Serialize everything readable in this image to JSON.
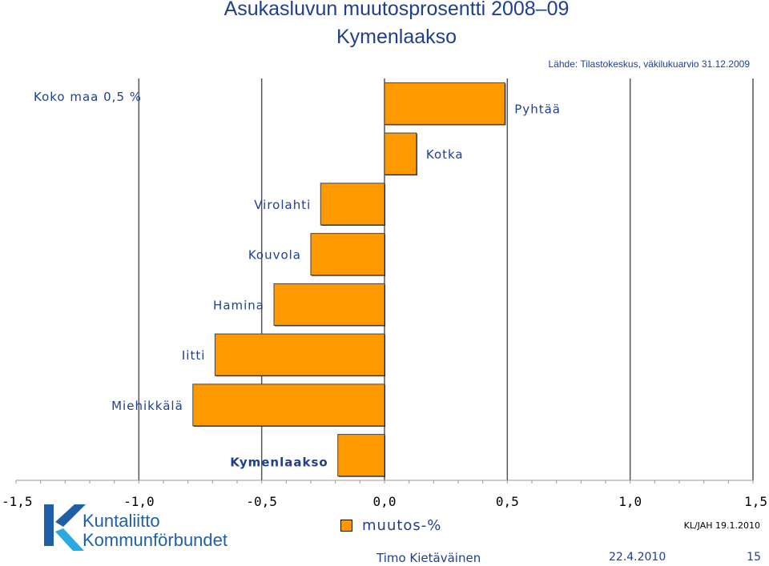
{
  "chart_data": {
    "type": "bar",
    "orientation": "horizontal",
    "title": "Asukasluvun muutosprosentti 2008–09",
    "subtitle": "Kymenlaakso",
    "source": "Lähde: Tilastokeskus, väkilukuarvio 31.12.2009",
    "reference_label": "Koko maa 0,5 %",
    "reference_value": 0.5,
    "categories": [
      "Pyhtää",
      "Kotka",
      "Virolahti",
      "Kouvola",
      "Hamina",
      "Iitti",
      "Miehikkälä",
      "Kymenlaakso"
    ],
    "values": [
      0.49,
      0.13,
      -0.26,
      -0.3,
      -0.45,
      -0.69,
      -0.78,
      -0.19
    ],
    "bold_categories": [
      "Kymenlaakso"
    ],
    "xlim": [
      -1.5,
      1.5
    ],
    "xticks": [
      -1.5,
      -1.0,
      -0.5,
      0.0,
      0.5,
      1.0,
      1.5
    ],
    "xtick_labels": [
      "-1,5",
      "-1,0",
      "-0,5",
      "0,0",
      "0,5",
      "1,0",
      "1,5"
    ],
    "grid": true,
    "legend": "bottom-center",
    "series_name": "muutos-%",
    "bar_color": "#ff9900",
    "label_color": "#1f3f8f"
  },
  "logo": {
    "line1": "Kuntaliitto",
    "line2": "Kommunförbundet",
    "color": "#1f5fa8"
  },
  "stamp": "KL/JAH 19.1.2010",
  "footer": {
    "author": "Timo Kietäväinen",
    "date": "22.4.2010",
    "page": "15"
  }
}
